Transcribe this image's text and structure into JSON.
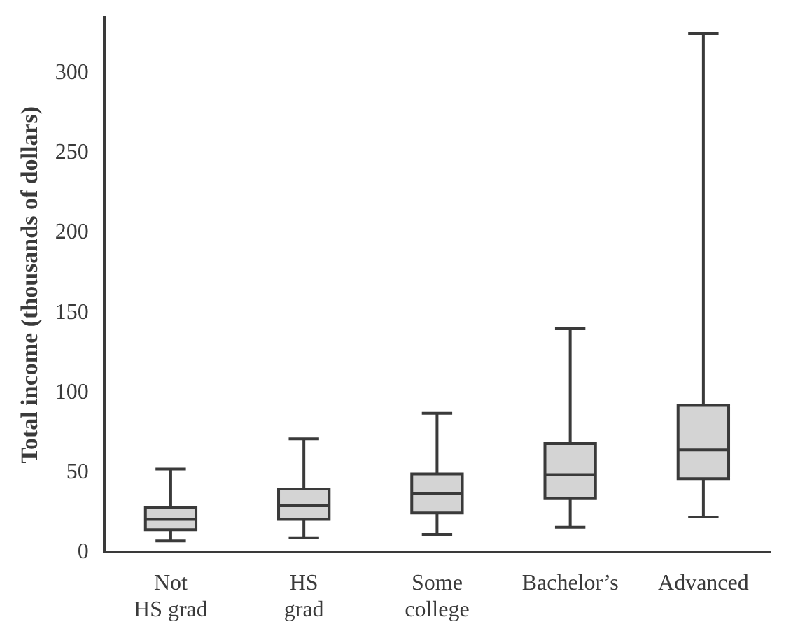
{
  "chart_data": {
    "type": "box",
    "ylabel": "Total income (thousands of dollars)",
    "categories": [
      "Not\nHS grad",
      "HS\ngrad",
      "Some\ncollege",
      "Bachelor’s",
      "Advanced"
    ],
    "boxes": [
      {
        "low": 7,
        "q1": 14,
        "median": 20.5,
        "q3": 28,
        "high": 52
      },
      {
        "low": 9,
        "q1": 20.5,
        "median": 29,
        "q3": 39.5,
        "high": 71
      },
      {
        "low": 11,
        "q1": 24.5,
        "median": 36.5,
        "q3": 49,
        "high": 87
      },
      {
        "low": 15.5,
        "q1": 33.5,
        "median": 48.5,
        "q3": 68,
        "high": 140
      },
      {
        "low": 22,
        "q1": 46,
        "median": 64,
        "q3": 92,
        "high": 325
      }
    ],
    "color": "#d4d4d4",
    "ylim": [
      0,
      335
    ],
    "yticks": [
      0,
      50,
      100,
      150,
      200,
      250,
      300
    ],
    "grid": false,
    "legend": false
  }
}
